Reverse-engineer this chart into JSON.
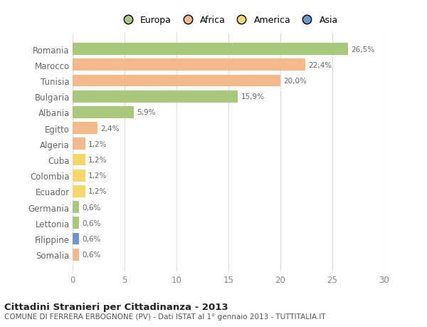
{
  "countries": [
    "Romania",
    "Marocco",
    "Tunisia",
    "Bulgaria",
    "Albania",
    "Egitto",
    "Algeria",
    "Cuba",
    "Colombia",
    "Ecuador",
    "Germania",
    "Lettonia",
    "Filippine",
    "Somalia"
  ],
  "values": [
    26.5,
    22.4,
    20.0,
    15.9,
    5.9,
    2.4,
    1.2,
    1.2,
    1.2,
    1.2,
    0.6,
    0.6,
    0.6,
    0.6
  ],
  "labels": [
    "26,5%",
    "22,4%",
    "20,0%",
    "15,9%",
    "5,9%",
    "2,4%",
    "1,2%",
    "1,2%",
    "1,2%",
    "1,2%",
    "0,6%",
    "0,6%",
    "0,6%",
    "0,6%"
  ],
  "colors": [
    "#a8c97a",
    "#f5b98a",
    "#f5b98a",
    "#a8c97a",
    "#a8c97a",
    "#f5b98a",
    "#f5b98a",
    "#f5d76a",
    "#f5d76a",
    "#f5d76a",
    "#a8c97a",
    "#a8c97a",
    "#6699cc",
    "#f5b98a"
  ],
  "legend_labels": [
    "Europa",
    "Africa",
    "America",
    "Asia"
  ],
  "legend_colors": [
    "#a8c97a",
    "#f5b98a",
    "#f5d76a",
    "#6699cc"
  ],
  "title": "Cittadini Stranieri per Cittadinanza - 2013",
  "subtitle": "COMUNE DI FERRERA ERBOGNONE (PV) - Dati ISTAT al 1° gennaio 2013 - TUTTITALIA.IT",
  "xlim": [
    0,
    30
  ],
  "xticks": [
    0,
    5,
    10,
    15,
    20,
    25,
    30
  ],
  "bg_color": "#ffffff",
  "grid_color": "#dddddd",
  "bar_height": 0.75
}
